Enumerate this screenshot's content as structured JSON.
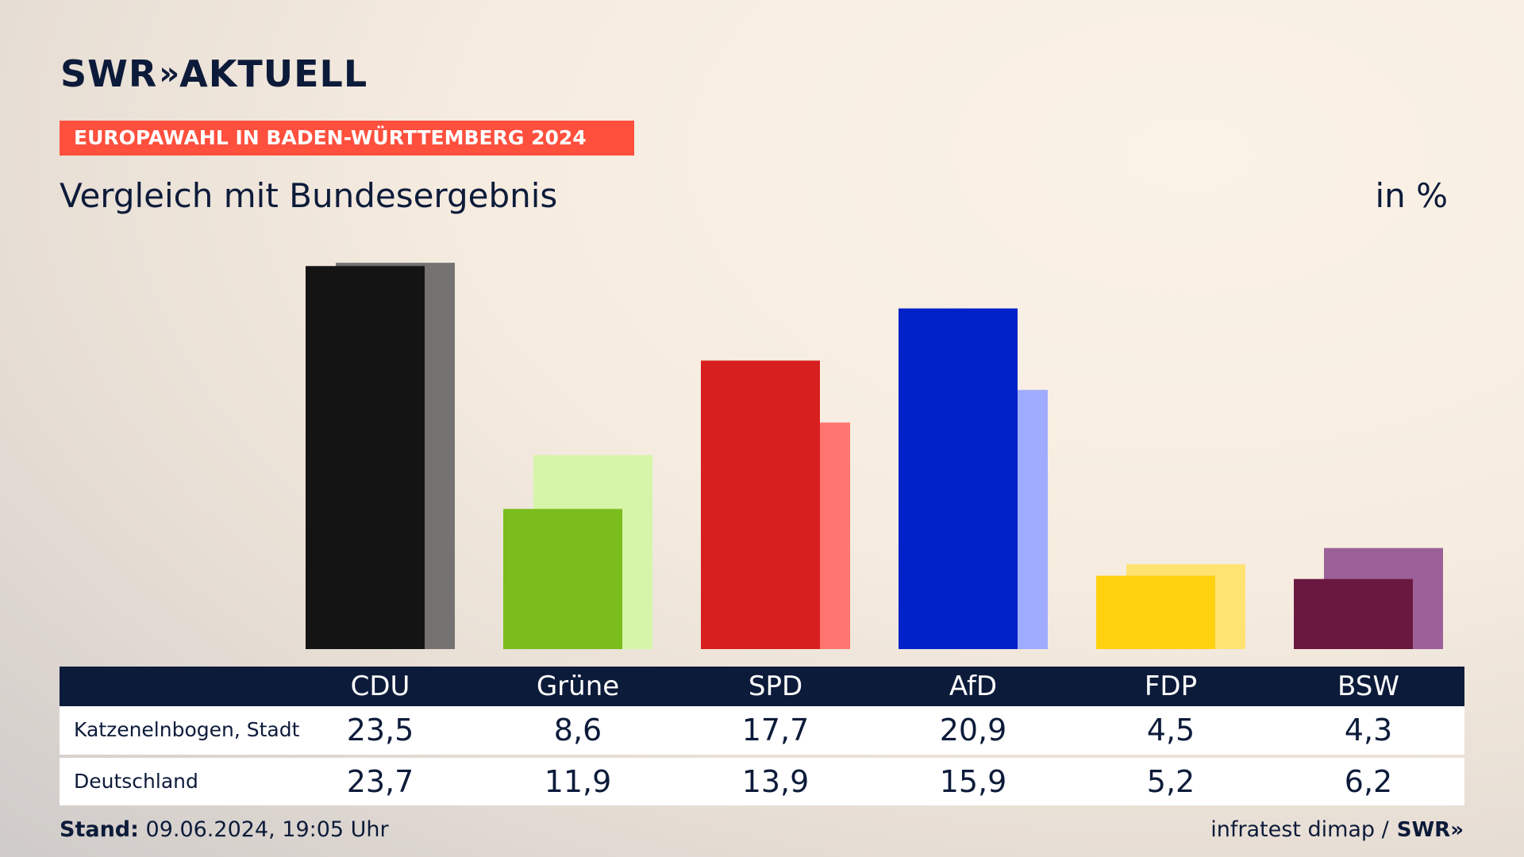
{
  "header": {
    "logo_left": "SWR",
    "logo_chevrons": "»",
    "logo_right": "AKTUELL",
    "banner": "EUROPAWAHL IN BADEN-WÜRTTEMBERG 2024",
    "subtitle": "Vergleich mit Bundesergebnis",
    "unit": "in %"
  },
  "chart_data": {
    "type": "bar",
    "categories": [
      "CDU",
      "Grüne",
      "SPD",
      "AfD",
      "FDP",
      "BSW"
    ],
    "series": [
      {
        "name": "Katzenelnbogen, Stadt",
        "values": [
          23.5,
          8.6,
          17.7,
          20.9,
          4.5,
          4.3
        ]
      },
      {
        "name": "Deutschland",
        "values": [
          23.7,
          11.9,
          13.9,
          15.9,
          5.2,
          6.2
        ]
      }
    ],
    "colors_primary": [
      "#141414",
      "#7abd1d",
      "#d81f1f",
      "#0022c8",
      "#ffd10f",
      "#6a1840"
    ],
    "colors_secondary": [
      "#747372",
      "#d6f5a9",
      "#ff7670",
      "#9fabff",
      "#ffe371",
      "#9c6099"
    ],
    "ylim": [
      0,
      24
    ],
    "grid": false
  },
  "table": {
    "rows": [
      {
        "label": "Katzenelnbogen, Stadt",
        "values": [
          "23,5",
          "8,6",
          "17,7",
          "20,9",
          "4,5",
          "4,3"
        ]
      },
      {
        "label": "Deutschland",
        "values": [
          "23,7",
          "11,9",
          "13,9",
          "15,9",
          "5,2",
          "6,2"
        ]
      }
    ]
  },
  "footer": {
    "stand_label": "Stand:",
    "stand_value": "09.06.2024, 19:05 Uhr",
    "source": "infratest dimap /",
    "source_logo": "SWR»"
  }
}
